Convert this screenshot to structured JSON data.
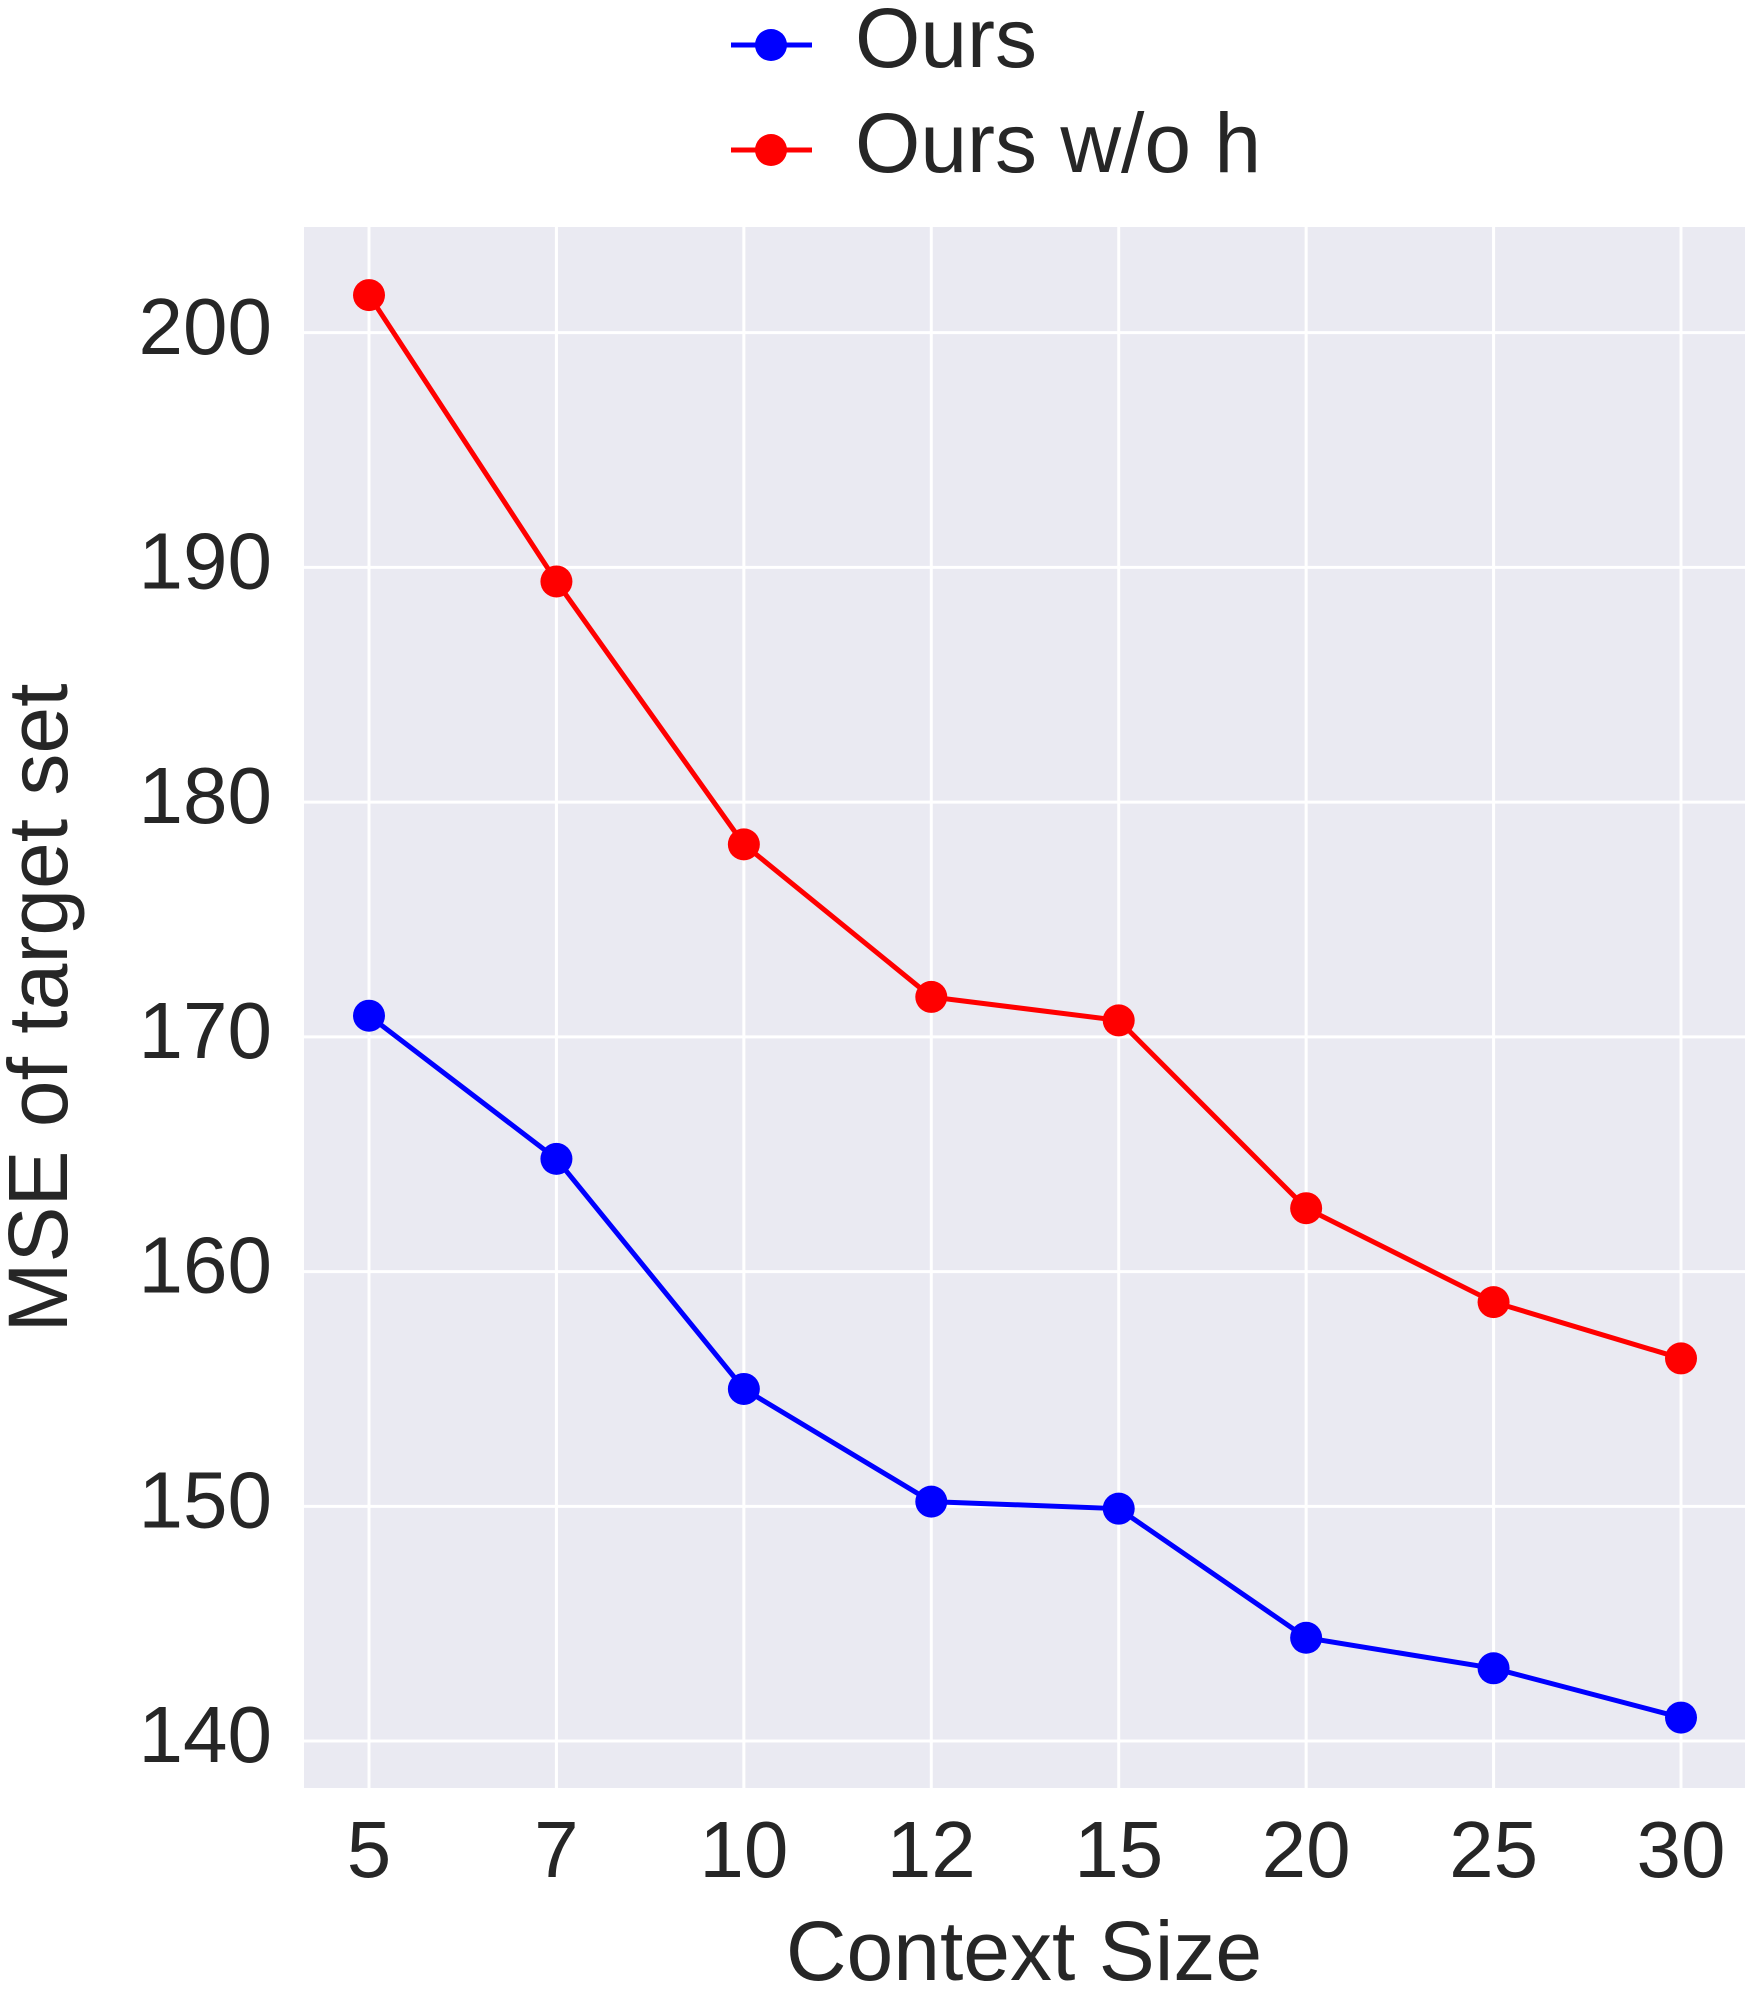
{
  "chart_data": {
    "type": "line",
    "x_label": "Context Size",
    "y_label": "MSE of target set",
    "categories": [
      "5",
      "7",
      "10",
      "12",
      "15",
      "20",
      "25",
      "30"
    ],
    "series": [
      {
        "name": "Ours",
        "color": "#0000ff",
        "values": [
          170.9,
          164.8,
          155.0,
          150.2,
          149.9,
          144.4,
          143.1,
          141.0
        ]
      },
      {
        "name": "Ours w/o h",
        "color": "#ff0000",
        "values": [
          201.6,
          189.4,
          178.2,
          171.7,
          170.7,
          162.7,
          158.7,
          156.3
        ]
      }
    ],
    "ylim": [
      138.0,
      204.5
    ],
    "yticks": [
      140,
      150,
      160,
      170,
      180,
      190,
      200
    ],
    "grid": true,
    "legend": "top center"
  }
}
